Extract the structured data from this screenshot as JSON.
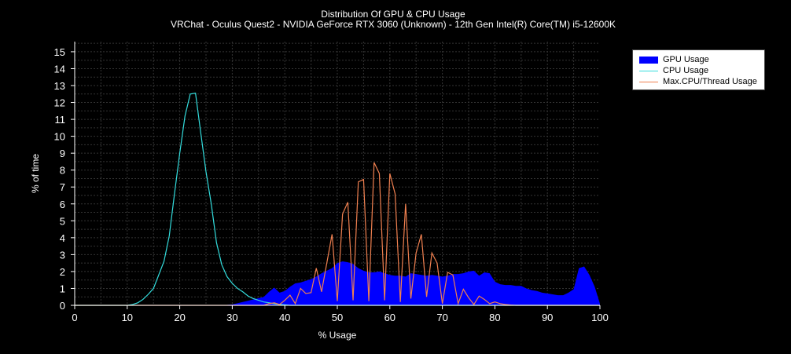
{
  "chart_data": {
    "type": "area",
    "title": "Distribution Of GPU & CPU Usage",
    "subtitle": "VRChat - Oculus Quest2 - NVIDIA GeForce RTX 3060 (Unknown) - 12th Gen Intel(R) Core(TM) i5-12600K",
    "xlabel": "% Usage",
    "ylabel": "% of time",
    "xlim": [
      0,
      100
    ],
    "ylim": [
      0,
      15.6
    ],
    "xticks": [
      0,
      10,
      20,
      30,
      40,
      50,
      60,
      70,
      80,
      90,
      100
    ],
    "yticks": [
      0,
      1,
      2,
      3,
      4,
      5,
      6,
      7,
      8,
      9,
      10,
      11,
      12,
      13,
      14,
      15
    ],
    "grid": true,
    "legend_position": "top-right",
    "series": [
      {
        "name": "GPU Usage",
        "kind": "area",
        "color": "#0000ff",
        "x": [
          0,
          28,
          30,
          32,
          34,
          36,
          37,
          38,
          39,
          40,
          41,
          42,
          43,
          44,
          45,
          46,
          47,
          48,
          49,
          50,
          51,
          52,
          53,
          54,
          55,
          56,
          57,
          58,
          59,
          60,
          61,
          62,
          63,
          64,
          65,
          66,
          67,
          68,
          69,
          70,
          71,
          72,
          73,
          74,
          75,
          76,
          77,
          78,
          79,
          80,
          81,
          82,
          83,
          84,
          85,
          86,
          87,
          88,
          89,
          90,
          91,
          92,
          93,
          94,
          95,
          96,
          97,
          98,
          99,
          100
        ],
        "values": [
          0,
          0,
          0.05,
          0.2,
          0.35,
          0.5,
          0.8,
          1.05,
          0.75,
          0.85,
          1.1,
          1.3,
          1.35,
          1.45,
          1.55,
          1.7,
          1.9,
          2.05,
          2.2,
          2.5,
          2.6,
          2.55,
          2.45,
          2.2,
          2.05,
          1.95,
          1.95,
          2.0,
          1.9,
          1.8,
          1.75,
          1.75,
          1.7,
          1.9,
          1.85,
          1.8,
          1.75,
          1.8,
          1.75,
          1.7,
          1.75,
          1.85,
          1.85,
          1.9,
          2.0,
          2.05,
          1.75,
          1.95,
          1.9,
          1.4,
          1.25,
          1.2,
          1.2,
          1.15,
          1.15,
          1.0,
          0.9,
          0.85,
          0.75,
          0.7,
          0.65,
          0.6,
          0.6,
          0.75,
          0.95,
          2.2,
          2.3,
          1.8,
          1.1,
          0.1
        ]
      },
      {
        "name": "CPU Usage",
        "kind": "line",
        "color": "#33dddd",
        "x": [
          0,
          10,
          11,
          12,
          13,
          14,
          15,
          16,
          17,
          18,
          19,
          20,
          21,
          22,
          23,
          24,
          25,
          26,
          27,
          28,
          29,
          30,
          31,
          32,
          33,
          34,
          35,
          36,
          37,
          38,
          39,
          40,
          41,
          100
        ],
        "values": [
          0,
          0,
          0.05,
          0.15,
          0.35,
          0.65,
          1.0,
          1.8,
          2.6,
          4.1,
          6.6,
          9.0,
          11.2,
          12.5,
          12.55,
          10.2,
          7.9,
          6.0,
          3.7,
          2.4,
          1.7,
          1.3,
          1.0,
          0.8,
          0.55,
          0.4,
          0.3,
          0.2,
          0.15,
          0.1,
          0.05,
          0.03,
          0,
          0
        ]
      },
      {
        "name": "Max.CPU/Thread Usage",
        "kind": "line",
        "color": "#f08050",
        "x": [
          0,
          36,
          37,
          38,
          39,
          40,
          41,
          42,
          43,
          44,
          45,
          46,
          47,
          48,
          49,
          50,
          51,
          52,
          53,
          54,
          55,
          56,
          57,
          58,
          59,
          60,
          61,
          62,
          63,
          64,
          65,
          66,
          67,
          68,
          69,
          70,
          71,
          72,
          73,
          74,
          75,
          76,
          77,
          78,
          79,
          80,
          81,
          82,
          83,
          84,
          100
        ],
        "values": [
          0,
          0,
          0.1,
          0.15,
          0.05,
          0.3,
          0.6,
          0.1,
          1.0,
          0.7,
          0.75,
          2.2,
          0.8,
          2.5,
          4.2,
          0.25,
          5.4,
          6.1,
          0.3,
          7.3,
          7.45,
          0.25,
          8.45,
          7.8,
          0.3,
          7.8,
          6.6,
          0.2,
          6.0,
          0.4,
          3.1,
          4.2,
          0.5,
          3.1,
          2.5,
          0.1,
          1.95,
          1.8,
          0.1,
          0.95,
          0.45,
          0.05,
          0.55,
          0.35,
          0.1,
          0.2,
          0.1,
          0.05,
          0.02,
          0,
          0
        ]
      }
    ]
  }
}
